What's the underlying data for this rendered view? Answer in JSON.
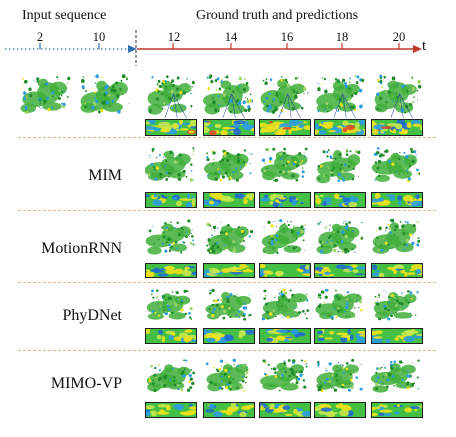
{
  "header": {
    "input_title": "Input sequence",
    "pred_title": "Ground truth and predictions",
    "time_axis_label": "t",
    "input_ticks": [
      "2",
      "10"
    ],
    "pred_ticks": [
      "12",
      "14",
      "16",
      "18",
      "20"
    ]
  },
  "rows": [
    {
      "label": ""
    },
    {
      "label": "MIM"
    },
    {
      "label": "MotionRNN"
    },
    {
      "label": "PhyDNet"
    },
    {
      "label": "MIMO-VP"
    }
  ],
  "colors": {
    "input_arrow": "#2f6fb0",
    "pred_arrow": "#c0392b",
    "separator": "#e9b48f",
    "land": "#3fae3a",
    "rain_light": "#2a9de0",
    "rain_heavy": "#f2e21a"
  }
}
